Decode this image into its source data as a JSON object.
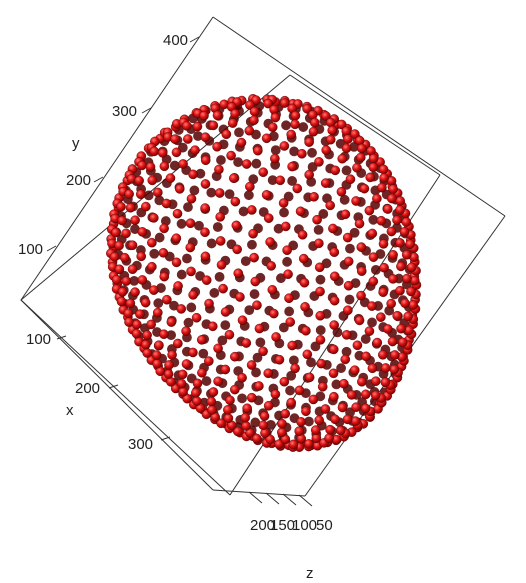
{
  "chart_data": {
    "type": "scatter",
    "title": "",
    "subtitle": "",
    "projection": "3d",
    "grid": false,
    "legend": "none",
    "marker": "sphere",
    "marker_color": "#dd1111",
    "marker_edge_color": "#550000",
    "axes": {
      "x": {
        "label": "x",
        "ticks": [
          "100",
          "200",
          "300"
        ],
        "range": [
          50,
          370
        ]
      },
      "y": {
        "label": "y",
        "ticks": [
          "100",
          "200",
          "300",
          "400"
        ],
        "range": [
          50,
          420
        ]
      },
      "z": {
        "label": "z",
        "ticks": [
          "200",
          "150",
          "100",
          "50"
        ],
        "range": [
          30,
          230
        ]
      }
    },
    "series": [
      {
        "shape": "ellipsoid",
        "center": {
          "x": 210,
          "y": 215,
          "z": 130
        },
        "semi_axes": {
          "x": 140,
          "y": 150,
          "z": 90
        },
        "point_count": 900
      }
    ]
  }
}
